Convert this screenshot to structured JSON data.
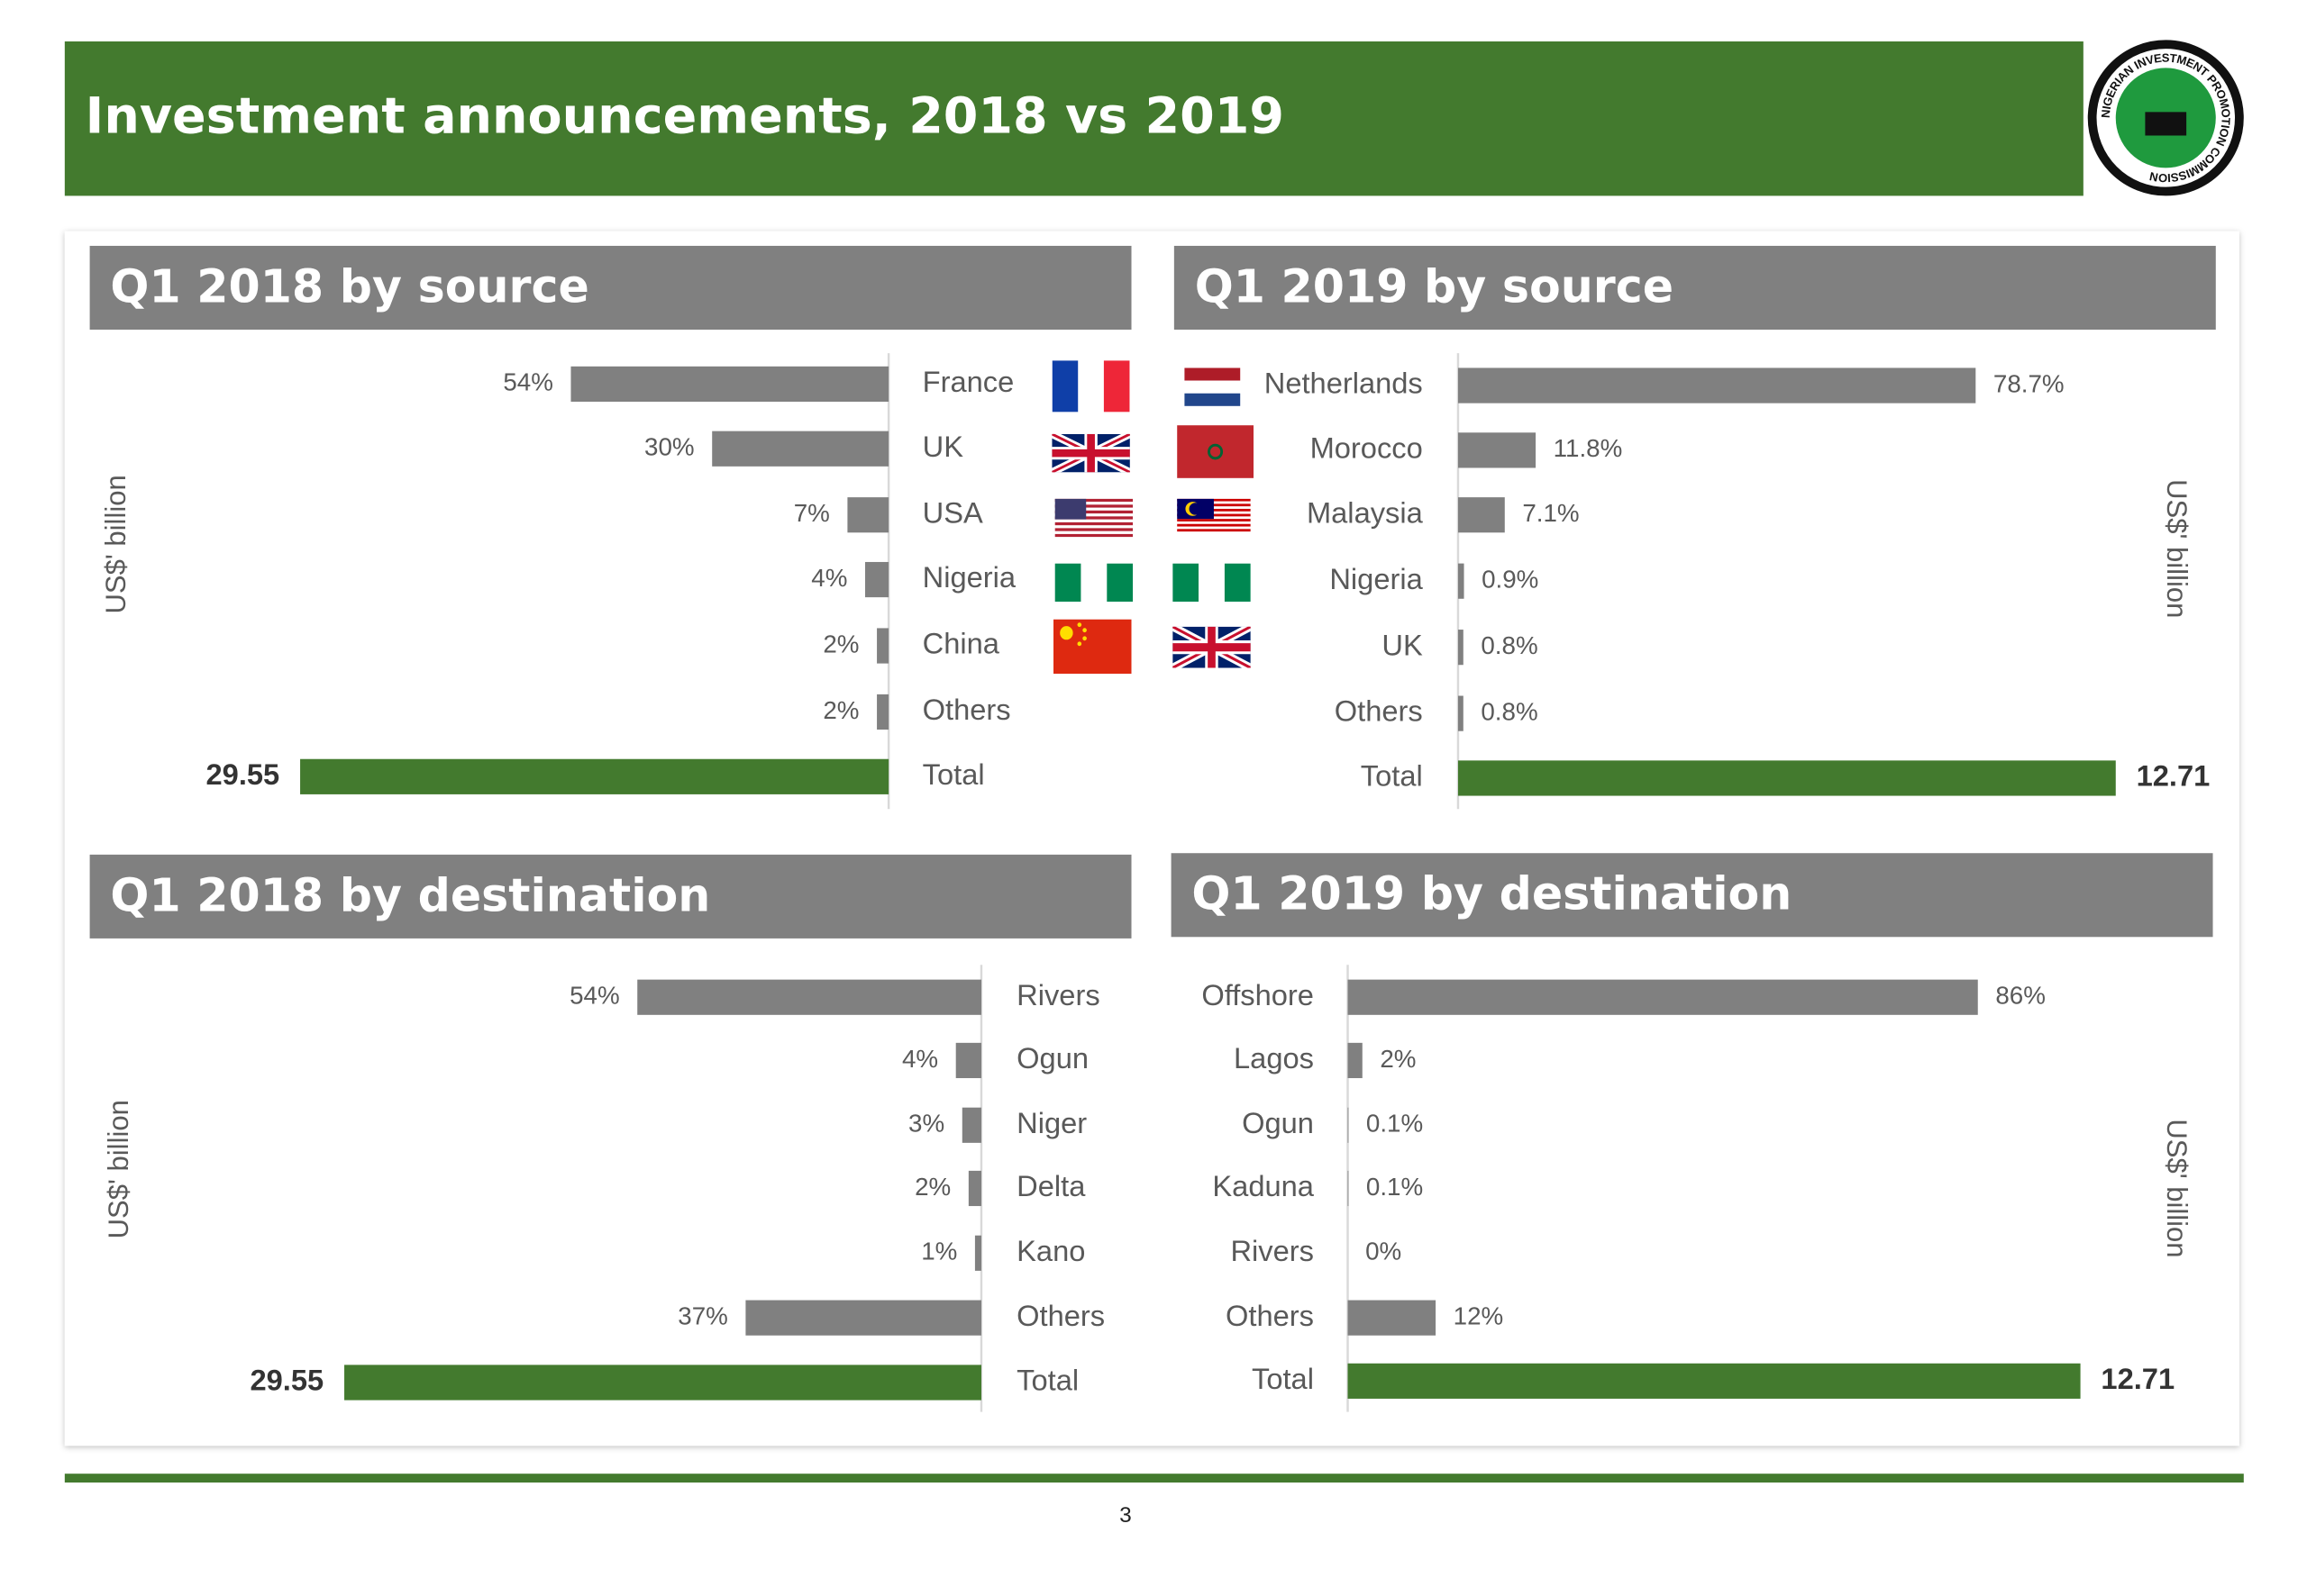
{
  "title": "Investment announcements, 2018 vs 2019",
  "logo_text": "NIGERIAN INVESTMENT PROMOTION COMMISSION",
  "page_number": "3",
  "chart_data": [
    {
      "type": "bar",
      "title": "Q1 2018 by source",
      "y_label": "US$' billion",
      "categories": [
        "France",
        "UK",
        "USA",
        "Nigeria",
        "China",
        "Others"
      ],
      "values": [
        54,
        30,
        7,
        4,
        2,
        2
      ],
      "value_labels": [
        "54%",
        "30%",
        "7%",
        "4%",
        "2%",
        "2%"
      ],
      "xlim": [
        0,
        100
      ],
      "color": "#808080",
      "total": {
        "label": "Total",
        "value": 29.55,
        "color": "#437a2e"
      }
    },
    {
      "type": "bar",
      "title": "Q1 2019 by source",
      "y_label": "US$' billion",
      "categories": [
        "Netherlands",
        "Morocco",
        "Malaysia",
        "Nigeria",
        "UK",
        "Others"
      ],
      "values": [
        78.7,
        11.8,
        7.1,
        0.9,
        0.8,
        0.8
      ],
      "value_labels": [
        "78.7%",
        "11.8%",
        "7.1%",
        "0.9%",
        "0.8%",
        "0.8%"
      ],
      "xlim": [
        0,
        100
      ],
      "color": "#808080",
      "total": {
        "label": "Total",
        "value": 12.71,
        "color": "#437a2e"
      }
    },
    {
      "type": "bar",
      "title": "Q1 2018 by destination",
      "y_label": "US$' billion",
      "categories": [
        "Rivers",
        "Ogun",
        "Niger",
        "Delta",
        "Kano",
        "Others"
      ],
      "values": [
        54,
        4,
        3,
        2,
        1,
        37
      ],
      "value_labels": [
        "54%",
        "4%",
        "3%",
        "2%",
        "1%",
        "37%"
      ],
      "xlim": [
        0,
        100
      ],
      "color": "#808080",
      "total": {
        "label": "Total",
        "value": 29.55,
        "color": "#437a2e"
      }
    },
    {
      "type": "bar",
      "title": "Q1 2019 by destination",
      "y_label": "US$' billion",
      "categories": [
        "Offshore",
        "Lagos",
        "Ogun",
        "Kaduna",
        "Rivers",
        "Others"
      ],
      "values": [
        86,
        2,
        0.1,
        0.1,
        0,
        12
      ],
      "value_labels": [
        "86%",
        "2%",
        "0.1%",
        "0.1%",
        "0%",
        "12%"
      ],
      "xlim": [
        0,
        100
      ],
      "color": "#808080",
      "total": {
        "label": "Total",
        "value": 12.71,
        "color": "#437a2e"
      }
    }
  ]
}
